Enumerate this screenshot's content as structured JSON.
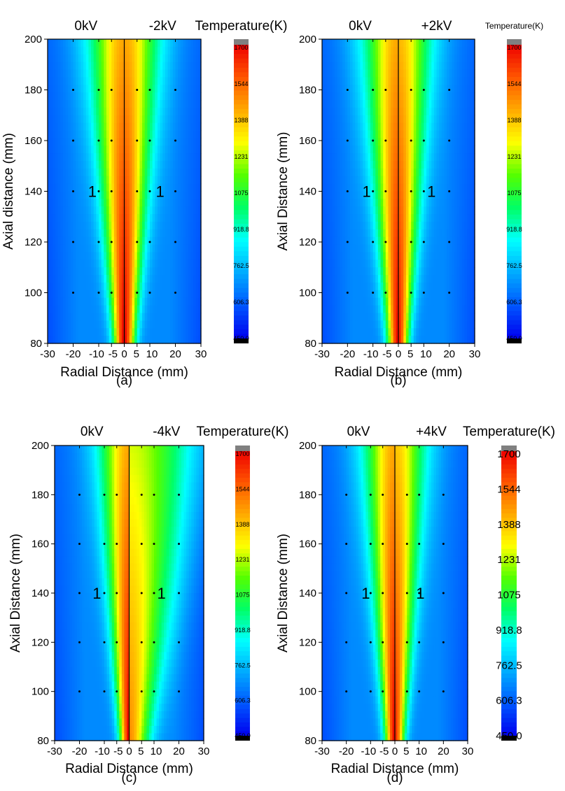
{
  "chart_data": [
    {
      "type": "heatmap",
      "panel_label": "(a)",
      "left_field": "0kV",
      "right_field": "-2kV",
      "colorbar_title": "Temperature(K)",
      "xlabel": "Radial Distance (mm)",
      "ylabel": "Axial distance (mm)",
      "xlim": [
        -30,
        30
      ],
      "ylim": [
        80,
        200
      ],
      "x_ticks": [
        "-30",
        "-20",
        "-10",
        "-5",
        "0",
        "5",
        "10",
        "20",
        "30"
      ],
      "y_ticks": [
        "80",
        "100",
        "120",
        "140",
        "160",
        "180",
        "200"
      ],
      "region_labels": [
        {
          "text": "1",
          "x": -12.5,
          "y": 140
        },
        {
          "text": "1",
          "x": 14,
          "y": 140
        }
      ],
      "measurement_points": {
        "x": [
          -20,
          -10,
          -5,
          5,
          10,
          20
        ],
        "y": [
          100,
          120,
          140,
          160,
          180
        ]
      },
      "profile": {
        "right_peak_shift": 1.0,
        "right_width_scale": 1.0,
        "left_width_scale": 1.0
      },
      "colorbar_ticks": [
        "1700",
        "1544",
        "1388",
        "1231",
        "1075",
        "918.8",
        "762.5",
        "606.3",
        "450.0"
      ]
    },
    {
      "type": "heatmap",
      "panel_label": "(b)",
      "left_field": "0kV",
      "right_field": "+2kV",
      "colorbar_title": "Temperature(K)",
      "xlabel": "Radial Distance (mm)",
      "ylabel": "Axial Distance (mm)",
      "xlim": [
        -30,
        30
      ],
      "ylim": [
        80,
        200
      ],
      "x_ticks": [
        "-30",
        "-20",
        "-10",
        "-5",
        "0",
        "5",
        "10",
        "20",
        "30"
      ],
      "y_ticks": [
        "80",
        "100",
        "120",
        "140",
        "160",
        "180",
        "200"
      ],
      "region_labels": [
        {
          "text": "1",
          "x": -12.5,
          "y": 140
        },
        {
          "text": "1",
          "x": 13,
          "y": 140
        }
      ],
      "measurement_points": {
        "x": [
          -20,
          -10,
          -5,
          5,
          10,
          20
        ],
        "y": [
          100,
          120,
          140,
          160,
          180
        ]
      },
      "profile": {
        "right_peak_shift": 0.97,
        "right_width_scale": 0.95,
        "left_width_scale": 1.0
      },
      "colorbar_ticks": [
        "1700",
        "1544",
        "1388",
        "1231",
        "1075",
        "918.8",
        "762.5",
        "606.3",
        "450.0"
      ]
    },
    {
      "type": "heatmap",
      "panel_label": "(c)",
      "left_field": "0kV",
      "right_field": "-4kV",
      "colorbar_title": "Temperature(K)",
      "xlabel": "Radial Distance (mm)",
      "ylabel": "Axial Distance (mm)",
      "xlim": [
        -30,
        30
      ],
      "ylim": [
        80,
        200
      ],
      "x_ticks": [
        "-30",
        "-20",
        "-10",
        "-5",
        "0",
        "5",
        "10",
        "20",
        "30"
      ],
      "y_ticks": [
        "80",
        "100",
        "120",
        "140",
        "160",
        "180",
        "200"
      ],
      "region_labels": [
        {
          "text": "1",
          "x": -13,
          "y": 140
        },
        {
          "text": "1",
          "x": 13,
          "y": 140
        }
      ],
      "measurement_points": {
        "x": [
          -20,
          -10,
          -5,
          5,
          10,
          20
        ],
        "y": [
          100,
          120,
          140,
          160,
          180
        ]
      },
      "profile": {
        "right_peak_shift": 0.82,
        "right_width_scale": 1.9,
        "left_width_scale": 0.9
      },
      "colorbar_ticks": [
        "1700",
        "1544",
        "1388",
        "1231",
        "1075",
        "918.8",
        "762.5",
        "606.3",
        "450.0"
      ]
    },
    {
      "type": "heatmap",
      "panel_label": "(d)",
      "left_field": "0kV",
      "right_field": "+4kV",
      "colorbar_title": "Temperature(K)",
      "xlabel": "Radial Distance (mm)",
      "ylabel": "Axial Distance (mm)",
      "xlim": [
        -30,
        30
      ],
      "ylim": [
        80,
        200
      ],
      "x_ticks": [
        "-30",
        "-20",
        "-10",
        "-5",
        "0",
        "5",
        "10",
        "20",
        "30"
      ],
      "y_ticks": [
        "80",
        "100",
        "120",
        "140",
        "160",
        "180",
        "200"
      ],
      "region_labels": [
        {
          "text": "1",
          "x": -12,
          "y": 140
        },
        {
          "text": "1",
          "x": 10.5,
          "y": 140
        }
      ],
      "measurement_points": {
        "x": [
          -20,
          -10,
          -5,
          5,
          10,
          20
        ],
        "y": [
          100,
          120,
          140,
          160,
          180
        ]
      },
      "profile": {
        "right_peak_shift": 0.95,
        "right_width_scale": 0.95,
        "left_width_scale": 0.95
      },
      "colorbar_ticks": [
        "1700",
        "1544",
        "1388",
        "1231",
        "1075",
        "918.8",
        "762.5",
        "606.3",
        "450.0"
      ]
    }
  ],
  "colorscale": [
    "#0000ee",
    "#0055ff",
    "#00aaff",
    "#00ffff",
    "#00ff66",
    "#55ff00",
    "#ffff00",
    "#ffaa00",
    "#ff5500",
    "#ee0000"
  ],
  "colorbar_cap_color": "#808080",
  "colorbar_min_color": "#000000"
}
